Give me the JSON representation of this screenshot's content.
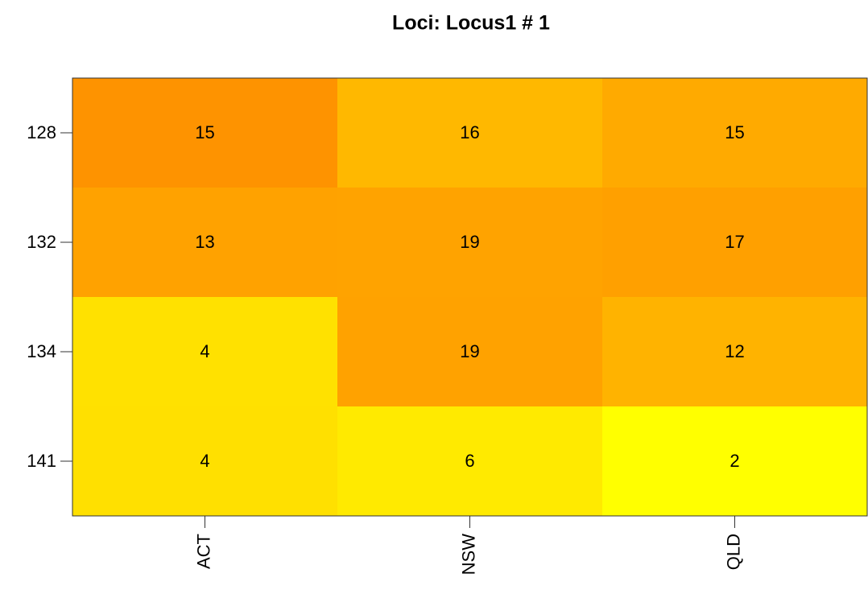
{
  "chart_data": {
    "type": "heatmap",
    "title": "Loci: Locus1 # 1",
    "categories": [
      "ACT",
      "NSW",
      "QLD"
    ],
    "y_categories": [
      "128",
      "132",
      "134",
      "141"
    ],
    "values": [
      [
        15,
        16,
        15
      ],
      [
        13,
        19,
        17
      ],
      [
        4,
        19,
        12
      ],
      [
        4,
        6,
        2
      ]
    ],
    "colors": [
      [
        "#FE9300",
        "#FFB800",
        "#FFAA00"
      ],
      [
        "#FFA200",
        "#FFA300",
        "#FFA000"
      ],
      [
        "#FFE100",
        "#FFA200",
        "#FFB300"
      ],
      [
        "#FFE000",
        "#FFEA00",
        "#FFFF00"
      ]
    ]
  }
}
